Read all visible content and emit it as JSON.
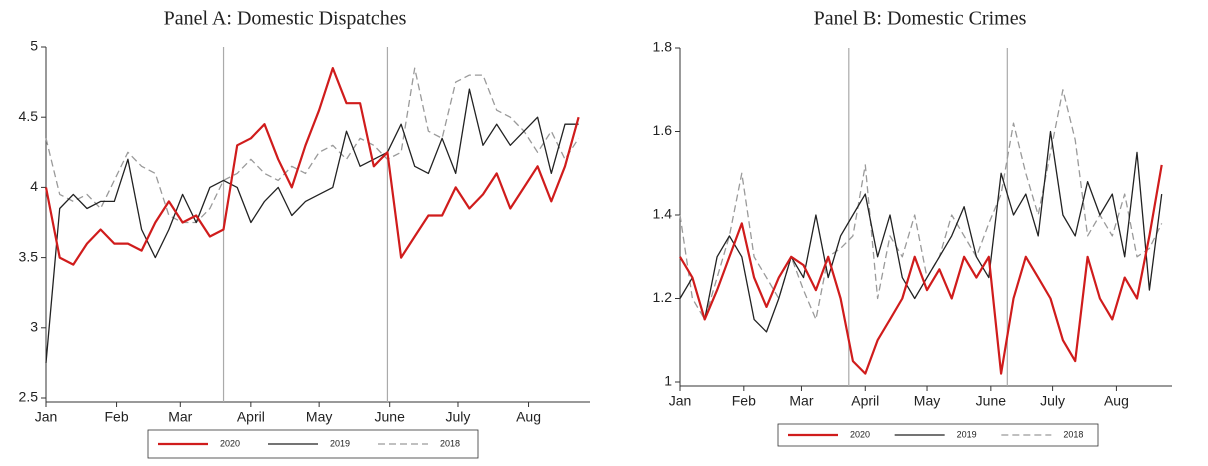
{
  "chart_data": [
    {
      "type": "line",
      "title": "Panel A: Domestic Dispatches",
      "x": [
        1,
        7,
        13,
        19,
        25,
        31,
        37,
        43,
        49,
        55,
        61,
        67,
        73,
        79,
        85,
        91,
        97,
        103,
        109,
        115,
        121,
        127,
        133,
        139,
        145,
        151,
        157,
        163,
        169,
        175,
        181,
        187,
        193,
        199,
        205,
        211,
        217,
        223,
        229,
        235
      ],
      "xlim": [
        1,
        240
      ],
      "xticks": [
        {
          "value": 1,
          "label": "Jan"
        },
        {
          "value": 32,
          "label": "Feb"
        },
        {
          "value": 60,
          "label": "Mar"
        },
        {
          "value": 91,
          "label": "April"
        },
        {
          "value": 121,
          "label": "May"
        },
        {
          "value": 152,
          "label": "June"
        },
        {
          "value": 182,
          "label": "July"
        },
        {
          "value": 213,
          "label": "Aug"
        }
      ],
      "ylim": [
        2.5,
        5
      ],
      "yticks": [
        2.5,
        3,
        3.5,
        4,
        4.5,
        5
      ],
      "vlines": [
        79,
        151
      ],
      "series": [
        {
          "name": "2020",
          "color": "#d01c1c",
          "width": 2.2,
          "dash": "none",
          "values": [
            4.0,
            3.5,
            3.45,
            3.6,
            3.7,
            3.6,
            3.6,
            3.55,
            3.75,
            3.9,
            3.75,
            3.8,
            3.65,
            3.7,
            4.3,
            4.35,
            4.45,
            4.2,
            4.0,
            4.3,
            4.55,
            4.85,
            4.6,
            4.6,
            4.15,
            4.25,
            3.5,
            3.65,
            3.8,
            3.8,
            4.0,
            3.85,
            3.95,
            4.1,
            3.85,
            4.0,
            4.15,
            3.9,
            4.15,
            4.5
          ]
        },
        {
          "name": "2019",
          "color": "#222222",
          "width": 1.3,
          "dash": "none",
          "values": [
            2.75,
            3.85,
            3.95,
            3.85,
            3.9,
            3.9,
            4.2,
            3.7,
            3.5,
            3.7,
            3.95,
            3.75,
            4.0,
            4.05,
            4.0,
            3.75,
            3.9,
            4.0,
            3.8,
            3.9,
            3.95,
            4.0,
            4.4,
            4.15,
            4.2,
            4.25,
            4.45,
            4.15,
            4.1,
            4.35,
            4.1,
            4.7,
            4.3,
            4.45,
            4.3,
            4.4,
            4.5,
            4.1,
            4.45,
            4.45
          ]
        },
        {
          "name": "2018",
          "color": "#9a9a9a",
          "width": 1.3,
          "dash": "7 4",
          "values": [
            4.35,
            3.95,
            3.9,
            3.95,
            3.85,
            4.05,
            4.25,
            4.15,
            4.1,
            3.8,
            3.75,
            3.75,
            3.85,
            4.05,
            4.1,
            4.2,
            4.1,
            4.05,
            4.15,
            4.1,
            4.25,
            4.3,
            4.2,
            4.35,
            4.3,
            4.2,
            4.25,
            4.85,
            4.4,
            4.35,
            4.75,
            4.8,
            4.8,
            4.55,
            4.5,
            4.4,
            4.25,
            4.4,
            4.2,
            4.35
          ]
        }
      ]
    },
    {
      "type": "line",
      "title": "Panel B: Domestic Crimes",
      "x": [
        1,
        7,
        13,
        19,
        25,
        31,
        37,
        43,
        49,
        55,
        61,
        67,
        73,
        79,
        85,
        91,
        97,
        103,
        109,
        115,
        121,
        127,
        133,
        139,
        145,
        151,
        157,
        163,
        169,
        175,
        181,
        187,
        193,
        199,
        205,
        211,
        217,
        223,
        229,
        235
      ],
      "xlim": [
        1,
        240
      ],
      "xticks": [
        {
          "value": 1,
          "label": "Jan"
        },
        {
          "value": 32,
          "label": "Feb"
        },
        {
          "value": 60,
          "label": "Mar"
        },
        {
          "value": 91,
          "label": "April"
        },
        {
          "value": 121,
          "label": "May"
        },
        {
          "value": 152,
          "label": "June"
        },
        {
          "value": 182,
          "label": "July"
        },
        {
          "value": 213,
          "label": "Aug"
        }
      ],
      "ylim": [
        1,
        1.8
      ],
      "yticks": [
        1,
        1.2,
        1.4,
        1.6,
        1.8
      ],
      "vlines": [
        83,
        160
      ],
      "series": [
        {
          "name": "2020",
          "color": "#d01c1c",
          "width": 2.2,
          "dash": "none",
          "values": [
            1.3,
            1.25,
            1.15,
            1.22,
            1.3,
            1.38,
            1.25,
            1.18,
            1.25,
            1.3,
            1.28,
            1.22,
            1.3,
            1.2,
            1.05,
            1.02,
            1.1,
            1.15,
            1.2,
            1.3,
            1.22,
            1.27,
            1.2,
            1.3,
            1.25,
            1.3,
            1.02,
            1.2,
            1.3,
            1.25,
            1.2,
            1.1,
            1.05,
            1.3,
            1.2,
            1.15,
            1.25,
            1.2,
            1.35,
            1.52
          ]
        },
        {
          "name": "2019",
          "color": "#222222",
          "width": 1.3,
          "dash": "none",
          "values": [
            1.2,
            1.25,
            1.15,
            1.3,
            1.35,
            1.3,
            1.15,
            1.12,
            1.2,
            1.3,
            1.25,
            1.4,
            1.25,
            1.35,
            1.4,
            1.45,
            1.3,
            1.4,
            1.25,
            1.2,
            1.25,
            1.3,
            1.35,
            1.42,
            1.3,
            1.25,
            1.5,
            1.4,
            1.45,
            1.35,
            1.6,
            1.4,
            1.35,
            1.48,
            1.4,
            1.45,
            1.3,
            1.55,
            1.22,
            1.45
          ]
        },
        {
          "name": "2018",
          "color": "#9a9a9a",
          "width": 1.3,
          "dash": "7 4",
          "values": [
            1.4,
            1.2,
            1.15,
            1.25,
            1.35,
            1.5,
            1.3,
            1.25,
            1.2,
            1.3,
            1.22,
            1.15,
            1.3,
            1.32,
            1.35,
            1.52,
            1.2,
            1.35,
            1.3,
            1.4,
            1.25,
            1.3,
            1.4,
            1.35,
            1.3,
            1.38,
            1.45,
            1.62,
            1.5,
            1.4,
            1.55,
            1.7,
            1.58,
            1.35,
            1.4,
            1.35,
            1.45,
            1.3,
            1.32,
            1.38
          ]
        }
      ]
    }
  ]
}
